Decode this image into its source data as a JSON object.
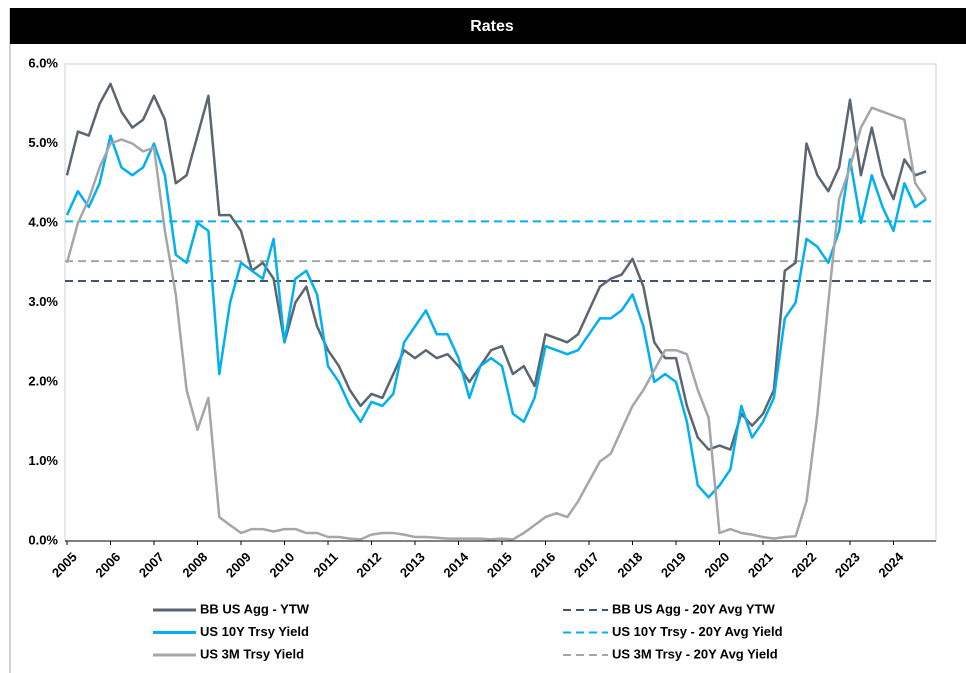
{
  "chart_data": {
    "type": "line",
    "title": "Rates",
    "x": [
      2005,
      2005.25,
      2005.5,
      2005.75,
      2006,
      2006.25,
      2006.5,
      2006.75,
      2007,
      2007.25,
      2007.5,
      2007.75,
      2008,
      2008.25,
      2008.5,
      2008.75,
      2009,
      2009.25,
      2009.5,
      2009.75,
      2010,
      2010.25,
      2010.5,
      2010.75,
      2011,
      2011.25,
      2011.5,
      2011.75,
      2012,
      2012.25,
      2012.5,
      2012.75,
      2013,
      2013.25,
      2013.5,
      2013.75,
      2014,
      2014.25,
      2014.5,
      2014.75,
      2015,
      2015.25,
      2015.5,
      2015.75,
      2016,
      2016.25,
      2016.5,
      2016.75,
      2017,
      2017.25,
      2017.5,
      2017.75,
      2018,
      2018.25,
      2018.5,
      2018.75,
      2019,
      2019.25,
      2019.5,
      2019.75,
      2020,
      2020.25,
      2020.5,
      2020.75,
      2021,
      2021.25,
      2021.5,
      2021.75,
      2022,
      2022.25,
      2022.5,
      2022.75,
      2023,
      2023.25,
      2023.5,
      2023.75,
      2024,
      2024.25,
      2024.5,
      2024.75
    ],
    "series": [
      {
        "name": "BB US Agg - YTW",
        "color": "#5b6670",
        "values": [
          4.6,
          5.15,
          5.1,
          5.5,
          5.75,
          5.4,
          5.2,
          5.3,
          5.6,
          5.3,
          4.5,
          4.6,
          5.1,
          5.6,
          4.1,
          4.1,
          3.9,
          3.4,
          3.5,
          3.3,
          2.5,
          3.0,
          3.2,
          2.7,
          2.4,
          2.2,
          1.9,
          1.7,
          1.85,
          1.8,
          2.1,
          2.4,
          2.3,
          2.4,
          2.3,
          2.35,
          2.2,
          2.0,
          2.2,
          2.4,
          2.45,
          2.1,
          2.2,
          1.95,
          2.6,
          2.55,
          2.5,
          2.6,
          2.9,
          3.2,
          3.3,
          3.35,
          3.55,
          3.2,
          2.5,
          2.3,
          2.3,
          1.7,
          1.3,
          1.15,
          1.2,
          1.15,
          1.6,
          1.45,
          1.6,
          1.9,
          3.4,
          3.5,
          5.0,
          4.6,
          4.4,
          4.7,
          5.55,
          4.6,
          5.2,
          4.6,
          4.3,
          4.8,
          4.6,
          4.65
        ]
      },
      {
        "name": "US 10Y Trsy Yield",
        "color": "#00b0f0",
        "values": [
          4.1,
          4.4,
          4.2,
          4.5,
          5.1,
          4.7,
          4.6,
          4.7,
          5.0,
          4.6,
          3.6,
          3.5,
          4.0,
          3.9,
          2.1,
          3.0,
          3.5,
          3.4,
          3.3,
          3.8,
          2.5,
          3.3,
          3.4,
          3.1,
          2.2,
          2.0,
          1.7,
          1.5,
          1.75,
          1.7,
          1.85,
          2.5,
          2.7,
          2.9,
          2.6,
          2.6,
          2.3,
          1.8,
          2.2,
          2.3,
          2.2,
          1.6,
          1.5,
          1.8,
          2.45,
          2.4,
          2.35,
          2.4,
          2.6,
          2.8,
          2.8,
          2.9,
          3.1,
          2.7,
          2.0,
          2.1,
          2.0,
          1.5,
          0.7,
          0.55,
          0.7,
          0.9,
          1.7,
          1.3,
          1.5,
          1.8,
          2.8,
          3.0,
          3.8,
          3.7,
          3.5,
          3.9,
          4.8,
          4.0,
          4.6,
          4.2,
          3.9,
          4.5,
          4.2,
          4.3
        ]
      },
      {
        "name": "US 3M Trsy Yield",
        "color": "#a6a6a6",
        "values": [
          3.5,
          4.0,
          4.3,
          4.7,
          5.0,
          5.05,
          5.0,
          4.9,
          4.95,
          3.9,
          3.1,
          1.9,
          1.4,
          1.8,
          0.3,
          0.2,
          0.1,
          0.15,
          0.15,
          0.12,
          0.15,
          0.15,
          0.1,
          0.1,
          0.05,
          0.05,
          0.03,
          0.02,
          0.08,
          0.1,
          0.1,
          0.08,
          0.05,
          0.05,
          0.04,
          0.03,
          0.03,
          0.03,
          0.03,
          0.02,
          0.03,
          0.02,
          0.1,
          0.2,
          0.3,
          0.35,
          0.3,
          0.5,
          0.75,
          1.0,
          1.1,
          1.4,
          1.7,
          1.9,
          2.15,
          2.4,
          2.4,
          2.35,
          1.9,
          1.55,
          0.1,
          0.15,
          0.1,
          0.08,
          0.05,
          0.03,
          0.05,
          0.06,
          0.5,
          1.6,
          3.0,
          4.3,
          4.7,
          5.2,
          5.45,
          5.4,
          5.35,
          5.3,
          4.5,
          4.3
        ]
      }
    ],
    "reference_lines": [
      {
        "name": "BB US Agg - 20Y Avg YTW",
        "color": "#44546a",
        "value": 3.27
      },
      {
        "name": "US 10Y Trsy - 20Y Avg Yield",
        "color": "#00b0f0",
        "value": 4.02
      },
      {
        "name": "US 3M Trsy - 20Y Avg Yield",
        "color": "#a6a6a6",
        "value": 3.52
      }
    ],
    "xlim": [
      2005,
      2025
    ],
    "xticks": [
      2005,
      2006,
      2007,
      2008,
      2009,
      2010,
      2011,
      2012,
      2013,
      2014,
      2015,
      2016,
      2017,
      2018,
      2019,
      2020,
      2021,
      2022,
      2023,
      2024
    ],
    "ylim": [
      0,
      6
    ],
    "yticks": [
      {
        "value": 0,
        "label": "0.0%"
      },
      {
        "value": 1,
        "label": "1.0%"
      },
      {
        "value": 2,
        "label": "2.0%"
      },
      {
        "value": 3,
        "label": "3.0%"
      },
      {
        "value": 4,
        "label": "4.0%"
      },
      {
        "value": 5,
        "label": "5.0%"
      },
      {
        "value": 6,
        "label": "6.0%"
      }
    ],
    "grid": false
  }
}
